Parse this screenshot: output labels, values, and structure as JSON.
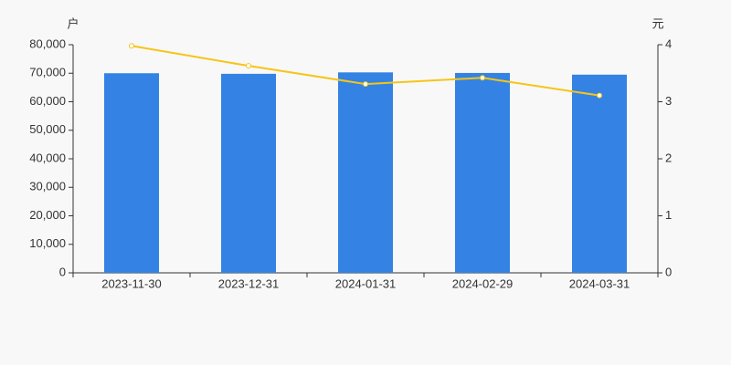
{
  "chart_data": {
    "type": "bar_line",
    "y_label": "户",
    "y2_label": "元",
    "categories": [
      "2023-11-30",
      "2023-12-31",
      "2024-01-31",
      "2024-02-29",
      "2024-03-31"
    ],
    "series": [
      {
        "type": "bar",
        "color": "#3483e4",
        "values": [
          70000,
          69800,
          70300,
          70100,
          69500
        ]
      },
      {
        "type": "line",
        "color": "#f5c518",
        "axis": "y2",
        "values": [
          3.98,
          3.63,
          3.31,
          3.42,
          3.11
        ]
      }
    ],
    "ylim": [
      0,
      80000
    ],
    "yticks": [
      0,
      {
        "value": 10000,
        "label": "10,000"
      },
      {
        "value": 20000,
        "label": "20,000"
      },
      {
        "value": 30000,
        "label": "30,000"
      },
      {
        "value": 40000,
        "label": "40,000"
      },
      {
        "value": 50000,
        "label": "50,000"
      },
      {
        "value": 60000,
        "label": "60,000"
      },
      {
        "value": 70000,
        "label": "70,000"
      },
      {
        "value": 80000,
        "label": "80,000"
      }
    ],
    "y2lim": [
      0,
      4
    ],
    "y2ticks": [
      0,
      1,
      2,
      3,
      4
    ],
    "grid": false
  }
}
